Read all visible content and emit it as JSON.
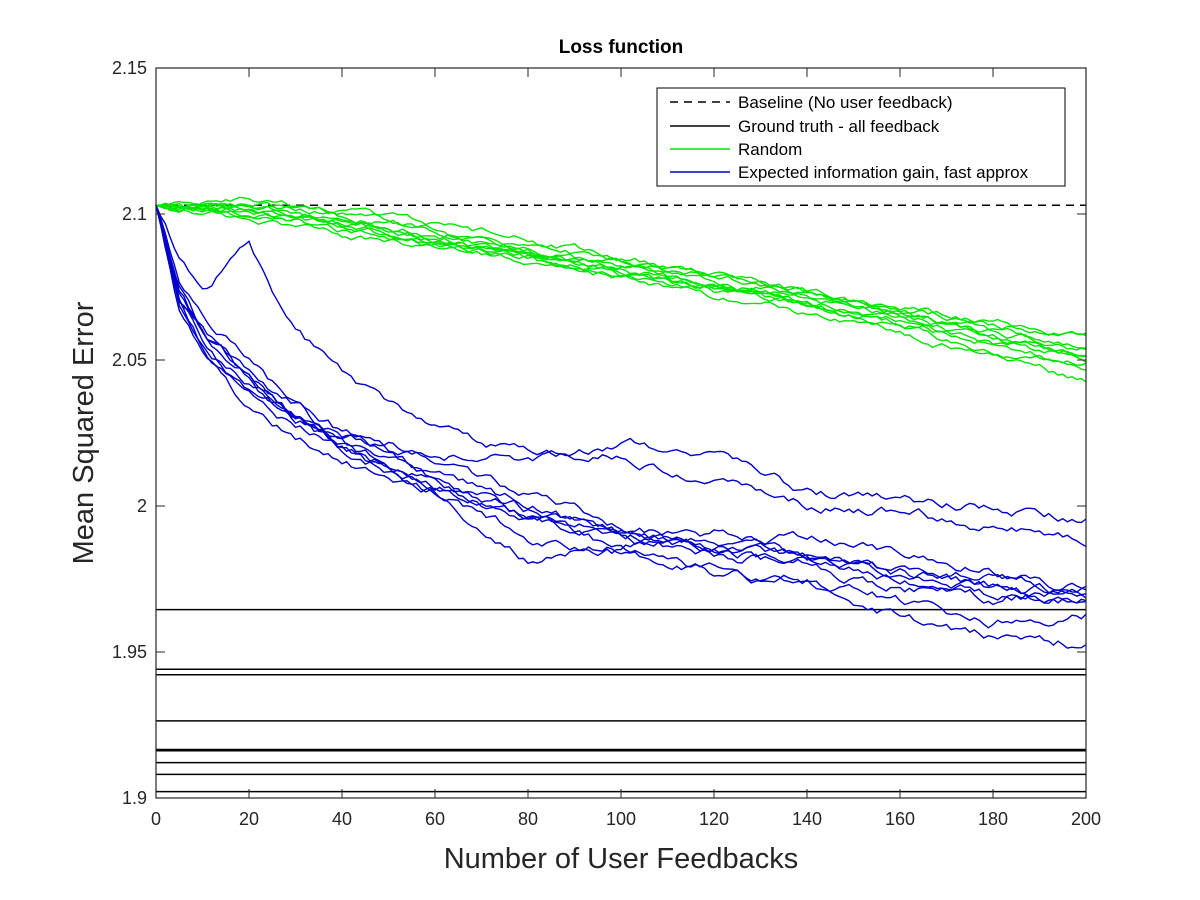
{
  "chart_data": {
    "type": "line",
    "title": "Loss function",
    "xlabel": "Number of User Feedbacks",
    "ylabel": "Mean Squared Error",
    "xlim": [
      0,
      200
    ],
    "ylim": [
      1.9,
      2.15
    ],
    "xticks": [
      "0",
      "20",
      "40",
      "60",
      "80",
      "100",
      "120",
      "140",
      "160",
      "180",
      "200"
    ],
    "yticks": [
      "1.9",
      "1.95",
      "2",
      "2.05",
      "2.1",
      "2.15"
    ],
    "grid": false,
    "legend_position": "top-right",
    "legend": [
      {
        "label": "Baseline (No user feedback)",
        "color": "#000000",
        "style": "dashed"
      },
      {
        "label": "Ground truth - all feedback",
        "color": "#000000",
        "style": "solid"
      },
      {
        "label": "Random",
        "color": "#00e600",
        "style": "solid"
      },
      {
        "label": "Expected information gain, fast approx",
        "color": "#0000cc",
        "style": "solid"
      }
    ],
    "baseline": {
      "y": 2.103,
      "color": "#000000",
      "style": "dashed"
    },
    "ground_truth": {
      "color": "#000000",
      "y_values": [
        1.9645,
        1.9441,
        1.9422,
        1.9264,
        1.9166,
        1.9162,
        1.9121,
        1.9081,
        1.9022
      ]
    },
    "random": {
      "color": "#00e600",
      "curves": [
        {
          "x": [
            0,
            20,
            40,
            60,
            80,
            100,
            120,
            140,
            160,
            180,
            200
          ],
          "y": [
            2.103,
            2.101,
            2.097,
            2.092,
            2.087,
            2.083,
            2.077,
            2.072,
            2.067,
            2.062,
            2.06
          ]
        },
        {
          "x": [
            0,
            20,
            40,
            60,
            80,
            100,
            120,
            140,
            160,
            180,
            200
          ],
          "y": [
            2.103,
            2.102,
            2.099,
            2.095,
            2.089,
            2.083,
            2.078,
            2.072,
            2.065,
            2.058,
            2.05
          ]
        },
        {
          "x": [
            0,
            20,
            40,
            60,
            80,
            100,
            120,
            140,
            160,
            180,
            200
          ],
          "y": [
            2.103,
            2.1,
            2.095,
            2.09,
            2.086,
            2.082,
            2.076,
            2.07,
            2.063,
            2.055,
            2.049
          ]
        },
        {
          "x": [
            0,
            20,
            40,
            60,
            80,
            100,
            120,
            140,
            160,
            180,
            200
          ],
          "y": [
            2.103,
            2.104,
            2.1,
            2.094,
            2.087,
            2.08,
            2.074,
            2.069,
            2.064,
            2.057,
            2.051
          ]
        },
        {
          "x": [
            0,
            20,
            40,
            60,
            80,
            100,
            120,
            140,
            160,
            180,
            200
          ],
          "y": [
            2.103,
            2.098,
            2.093,
            2.089,
            2.085,
            2.079,
            2.072,
            2.066,
            2.058,
            2.051,
            2.043
          ]
        },
        {
          "x": [
            0,
            20,
            40,
            60,
            80,
            100,
            120,
            140,
            160,
            180,
            200
          ],
          "y": [
            2.103,
            2.102,
            2.098,
            2.093,
            2.088,
            2.084,
            2.079,
            2.073,
            2.066,
            2.06,
            2.055
          ]
        },
        {
          "x": [
            0,
            20,
            40,
            60,
            80,
            100,
            120,
            140,
            160,
            180,
            200
          ],
          "y": [
            2.103,
            2.101,
            2.097,
            2.091,
            2.085,
            2.079,
            2.075,
            2.069,
            2.061,
            2.053,
            2.048
          ]
        },
        {
          "x": [
            0,
            20,
            40,
            60,
            80,
            100,
            120,
            140,
            160,
            180,
            200
          ],
          "y": [
            2.103,
            2.103,
            2.101,
            2.097,
            2.091,
            2.085,
            2.079,
            2.073,
            2.068,
            2.063,
            2.058
          ]
        },
        {
          "x": [
            0,
            20,
            40,
            60,
            80,
            100,
            120,
            140,
            160,
            180,
            200
          ],
          "y": [
            2.103,
            2.099,
            2.094,
            2.089,
            2.084,
            2.078,
            2.074,
            2.069,
            2.063,
            2.056,
            2.052
          ]
        },
        {
          "x": [
            0,
            20,
            40,
            60,
            80,
            100,
            120,
            140,
            160,
            180,
            200
          ],
          "y": [
            2.103,
            2.102,
            2.096,
            2.09,
            2.085,
            2.081,
            2.076,
            2.071,
            2.066,
            2.06,
            2.054
          ]
        }
      ]
    },
    "expected_information_gain": {
      "color": "#0000cc",
      "curves": [
        {
          "x": [
            0,
            5,
            10,
            20,
            30,
            40,
            60,
            80,
            100,
            120,
            140,
            160,
            180,
            200
          ],
          "y": [
            2.103,
            2.085,
            2.075,
            2.088,
            2.06,
            2.045,
            2.025,
            2.017,
            2.021,
            2.018,
            2.005,
            2.001,
            1.999,
            1.995
          ]
        },
        {
          "x": [
            0,
            5,
            10,
            20,
            30,
            40,
            60,
            80,
            100,
            120,
            140,
            160,
            180,
            200
          ],
          "y": [
            2.103,
            2.07,
            2.06,
            2.045,
            2.03,
            2.025,
            2.018,
            2.016,
            2.017,
            2.01,
            2.0,
            1.998,
            1.993,
            1.989
          ]
        },
        {
          "x": [
            0,
            5,
            10,
            20,
            30,
            40,
            60,
            80,
            100,
            120,
            140,
            160,
            180,
            200
          ],
          "y": [
            2.103,
            2.075,
            2.06,
            2.045,
            2.03,
            2.02,
            2.005,
            1.99,
            1.985,
            1.99,
            1.988,
            1.985,
            1.978,
            1.97
          ]
        },
        {
          "x": [
            0,
            5,
            10,
            20,
            30,
            40,
            60,
            80,
            100,
            120,
            140,
            160,
            180,
            200
          ],
          "y": [
            2.103,
            2.068,
            2.055,
            2.04,
            2.028,
            2.02,
            2.01,
            2.0,
            1.99,
            1.985,
            1.98,
            1.978,
            1.975,
            1.972
          ]
        },
        {
          "x": [
            0,
            5,
            10,
            20,
            30,
            40,
            60,
            80,
            100,
            120,
            140,
            160,
            180,
            200
          ],
          "y": [
            2.103,
            2.073,
            2.058,
            2.042,
            2.03,
            2.024,
            2.015,
            2.003,
            1.993,
            1.988,
            1.982,
            1.978,
            1.972,
            1.968
          ]
        },
        {
          "x": [
            0,
            5,
            10,
            20,
            30,
            40,
            60,
            80,
            100,
            120,
            140,
            160,
            180,
            200
          ],
          "y": [
            2.103,
            2.07,
            2.055,
            2.035,
            2.025,
            2.015,
            2.005,
            1.995,
            1.99,
            1.987,
            1.982,
            1.975,
            1.97,
            1.968
          ]
        },
        {
          "x": [
            0,
            5,
            10,
            20,
            30,
            40,
            60,
            80,
            100,
            120,
            140,
            160,
            180,
            200
          ],
          "y": [
            2.103,
            2.072,
            2.06,
            2.045,
            2.035,
            2.025,
            2.01,
            1.997,
            1.99,
            1.986,
            1.982,
            1.977,
            1.972,
            1.97
          ]
        },
        {
          "x": [
            0,
            5,
            10,
            20,
            30,
            40,
            60,
            80,
            100,
            120,
            140,
            160,
            180,
            200
          ],
          "y": [
            2.103,
            2.078,
            2.065,
            2.05,
            2.035,
            2.022,
            2.008,
            1.996,
            1.988,
            1.984,
            1.98,
            1.972,
            1.968,
            1.972
          ]
        },
        {
          "x": [
            0,
            5,
            10,
            20,
            30,
            40,
            60,
            80,
            100,
            120,
            140,
            160,
            180,
            200
          ],
          "y": [
            2.103,
            2.07,
            2.058,
            2.04,
            2.03,
            2.02,
            2.008,
            1.998,
            1.985,
            1.977,
            1.973,
            1.962,
            1.955,
            1.953
          ]
        },
        {
          "x": [
            0,
            5,
            10,
            20,
            30,
            40,
            60,
            80,
            100,
            120,
            140,
            160,
            180,
            200
          ],
          "y": [
            2.103,
            2.068,
            2.055,
            2.042,
            2.03,
            2.02,
            2.005,
            1.982,
            1.985,
            1.978,
            1.975,
            1.967,
            1.96,
            1.963
          ]
        }
      ]
    }
  }
}
